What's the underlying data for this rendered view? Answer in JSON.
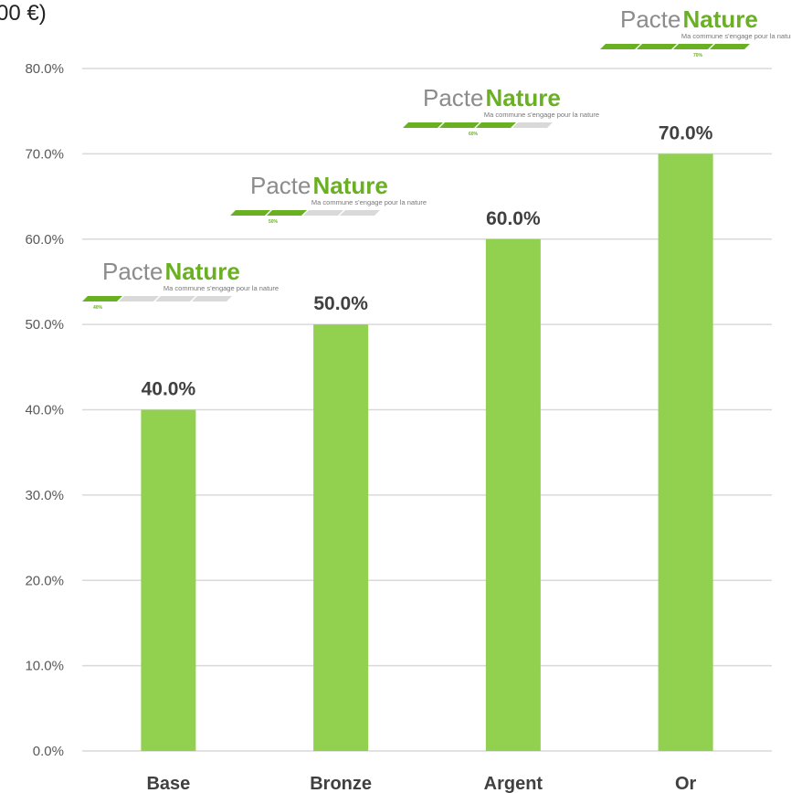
{
  "chart_data": {
    "type": "bar",
    "title": "00 €)",
    "categories": [
      "Base",
      "Bronze",
      "Argent",
      "Or"
    ],
    "values": [
      40,
      50,
      60,
      70
    ],
    "value_labels": [
      "40.0%",
      "50.0%",
      "60.0%",
      "70.0%"
    ],
    "color": "#92d050",
    "ylim": [
      0,
      80
    ],
    "yticks": [
      {
        "value": 0,
        "label": "0.0%"
      },
      {
        "value": 10,
        "label": "10.0%"
      },
      {
        "value": 20,
        "label": "20.0%"
      },
      {
        "value": 30,
        "label": "30.0%"
      },
      {
        "value": 40,
        "label": "40.0%"
      },
      {
        "value": 50,
        "label": "50.0%"
      },
      {
        "value": 60,
        "label": "60.0%"
      },
      {
        "value": 70,
        "label": "70.0%"
      },
      {
        "value": 80,
        "label": "80.0%"
      }
    ],
    "grid": true,
    "logos": [
      {
        "brand": "Pacte",
        "brand_bold": "Nature",
        "tagline": "Ma commune s'engage pour la nature",
        "level": "40%"
      },
      {
        "brand": "Pacte",
        "brand_bold": "Nature",
        "tagline": "Ma commune s'engage pour la nature",
        "level": "50%"
      },
      {
        "brand": "Pacte",
        "brand_bold": "Nature",
        "tagline": "Ma commune s'engage pour la nature",
        "level": "60%"
      },
      {
        "brand": "Pacte",
        "brand_bold": "Nature",
        "tagline": "Ma commune s'engage pour la nature",
        "level": "70%"
      }
    ]
  }
}
